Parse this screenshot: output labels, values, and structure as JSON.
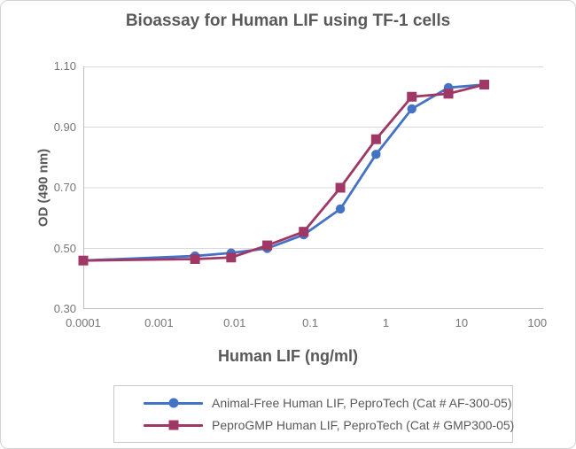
{
  "chart": {
    "title": "Bioassay for Human LIF using TF-1 cells",
    "x_axis": {
      "label": "Human LIF (ng/ml)",
      "tick_labels": [
        "0.0001",
        "0.001",
        "0.01",
        "0.1",
        "1",
        "10",
        "100"
      ],
      "tick_values": [
        0.0001,
        0.001,
        0.01,
        0.1,
        1,
        10,
        100
      ]
    },
    "y_axis": {
      "label": "OD (490 nm)",
      "tick_labels": [
        "1.10",
        "0.90",
        "0.70",
        "0.50",
        "0.30"
      ],
      "tick_values": [
        1.1,
        0.9,
        0.7,
        0.5,
        0.3
      ]
    }
  },
  "chart_data": {
    "type": "line",
    "title": "Bioassay for Human LIF using TF-1 cells",
    "xlabel": "Human LIF (ng/ml)",
    "ylabel": "OD (490 nm)",
    "xscale": "log",
    "xlim": [
      0.0001,
      120
    ],
    "ylim": [
      0.3,
      1.1
    ],
    "grid": "horizontal-only",
    "legend_position": "bottom",
    "x": [
      0.0001,
      0.003,
      0.009,
      0.027,
      0.082,
      0.25,
      0.74,
      2.2,
      6.7,
      20
    ],
    "series": [
      {
        "name": "Animal-Free Human LIF, PeproTech (Cat # AF-300-05)",
        "marker": "circle",
        "color": "#4472C4",
        "values": [
          0.46,
          0.475,
          0.485,
          0.5,
          0.545,
          0.63,
          0.81,
          0.96,
          1.03,
          1.04
        ]
      },
      {
        "name": "PeproGMP Human LIF, PeproTech (Cat # GMP300-05)",
        "marker": "square",
        "color": "#A03865",
        "values": [
          0.46,
          0.465,
          0.47,
          0.51,
          0.555,
          0.7,
          0.86,
          1.0,
          1.01,
          1.04
        ]
      }
    ]
  },
  "legend": {
    "items": [
      {
        "label": "Animal-Free Human LIF, PeproTech (Cat # AF-300-05)",
        "color": "#4472C4",
        "marker": "circle"
      },
      {
        "label": "PeproGMP Human LIF, PeproTech (Cat # GMP300-05)",
        "color": "#A03865",
        "marker": "square"
      }
    ]
  },
  "colors": {
    "gridline": "#D9D9D9",
    "axis_line": "#BFBFBF",
    "heading_text": "#595959",
    "tick_text": "#757575"
  }
}
